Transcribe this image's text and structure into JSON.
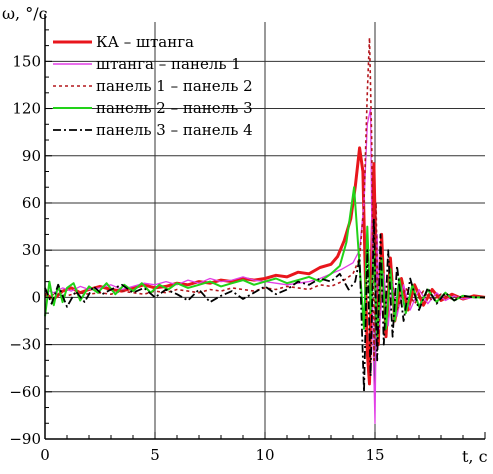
{
  "chart_data": {
    "type": "line",
    "ylabel": "ω, °/c",
    "xlabel": "t, c",
    "xlim": [
      0,
      20
    ],
    "ylim": [
      -90,
      175
    ],
    "xticks": [
      0,
      5,
      10,
      15
    ],
    "yticks": [
      -90,
      -60,
      -30,
      0,
      30,
      60,
      90,
      120,
      150
    ],
    "grid": true,
    "legend_position": "top-left",
    "series": [
      {
        "name": "КА – штанга",
        "color": "#e8161c",
        "dash": "solid",
        "width": 3,
        "x": [
          0,
          0.4,
          0.8,
          1.2,
          1.6,
          2.0,
          2.5,
          3.0,
          3.5,
          4.0,
          4.5,
          5.0,
          5.5,
          6.0,
          6.5,
          7.0,
          7.5,
          8.0,
          8.5,
          9.0,
          9.5,
          10.0,
          10.5,
          11.0,
          11.5,
          12.0,
          12.5,
          13.0,
          13.3,
          13.6,
          13.9,
          14.1,
          14.3,
          14.45,
          14.55,
          14.65,
          14.75,
          14.85,
          14.95,
          15.05,
          15.15,
          15.3,
          15.5,
          15.7,
          15.9,
          16.2,
          16.5,
          16.8,
          17.2,
          17.6,
          18.0,
          18.5,
          19.0,
          19.5,
          20.0
        ],
        "y": [
          2,
          -1,
          4,
          6,
          3,
          5,
          7,
          5,
          4,
          6,
          8,
          6,
          7,
          9,
          8,
          10,
          9,
          11,
          10,
          12,
          11,
          12,
          14,
          13,
          16,
          15,
          19,
          21,
          26,
          36,
          50,
          70,
          95,
          80,
          20,
          -35,
          -55,
          30,
          85,
          20,
          -30,
          40,
          -25,
          25,
          -15,
          12,
          -8,
          8,
          -5,
          5,
          -2,
          2,
          -1,
          1,
          0
        ]
      },
      {
        "name": "штанга – панель 1",
        "color": "#e23fe6",
        "dash": "solid",
        "width": 1.3,
        "x": [
          0,
          0.4,
          0.8,
          1.2,
          1.6,
          2.0,
          2.5,
          3.0,
          3.5,
          4.0,
          4.5,
          5.0,
          5.5,
          6.0,
          6.5,
          7.0,
          7.5,
          8.0,
          8.5,
          9.0,
          9.5,
          10.0,
          10.5,
          11.0,
          11.5,
          12.0,
          12.5,
          13.0,
          13.5,
          14.0,
          14.3,
          14.5,
          14.65,
          14.8,
          14.9,
          15.0,
          15.1,
          15.2,
          15.4,
          15.6,
          15.8,
          16.0,
          16.3,
          16.6,
          17.0,
          17.4,
          17.8,
          18.2,
          18.6,
          19.0,
          19.5,
          20.0
        ],
        "y": [
          5,
          3,
          6,
          4,
          7,
          5,
          6,
          8,
          5,
          7,
          9,
          8,
          10,
          8,
          11,
          9,
          12,
          10,
          11,
          13,
          11,
          10,
          9,
          8,
          9,
          10,
          12,
          15,
          18,
          22,
          30,
          60,
          110,
          120,
          -20,
          -80,
          40,
          -20,
          15,
          -18,
          10,
          -12,
          8,
          -8,
          5,
          -4,
          3,
          -2,
          1,
          -1,
          0,
          0
        ]
      },
      {
        "name": "панель 1 – панель 2",
        "color": "#b3161c",
        "dash": "3,3",
        "width": 1.6,
        "x": [
          0,
          0.5,
          1.0,
          1.5,
          2.0,
          2.5,
          3.0,
          3.5,
          4.0,
          4.5,
          5.0,
          5.5,
          6.0,
          6.5,
          7.0,
          7.5,
          8.0,
          8.5,
          9.0,
          9.5,
          10.0,
          10.5,
          11.0,
          11.5,
          12.0,
          12.5,
          13.0,
          13.5,
          14.0,
          14.3,
          14.5,
          14.65,
          14.75,
          14.85,
          14.95,
          15.05,
          15.15,
          15.3,
          15.5,
          15.7,
          16.0,
          16.4,
          16.8,
          17.2,
          17.6,
          18.0,
          18.5,
          19.0,
          19.5,
          20.0
        ],
        "y": [
          1,
          2,
          1,
          3,
          2,
          3,
          2,
          4,
          3,
          2,
          4,
          3,
          5,
          4,
          3,
          5,
          4,
          6,
          5,
          4,
          6,
          5,
          7,
          6,
          5,
          8,
          7,
          10,
          15,
          25,
          60,
          130,
          165,
          100,
          -40,
          60,
          -30,
          20,
          -10,
          15,
          -8,
          6,
          -4,
          4,
          -2,
          2,
          -1,
          1,
          0,
          0
        ]
      },
      {
        "name": "панель 2 – панель 3",
        "color": "#22d219",
        "dash": "solid",
        "width": 2,
        "x": [
          0,
          0.2,
          0.4,
          0.6,
          0.8,
          1.0,
          1.3,
          1.6,
          2.0,
          2.4,
          2.8,
          3.2,
          3.6,
          4.0,
          4.4,
          4.8,
          5.2,
          5.6,
          6.0,
          6.5,
          7.0,
          7.5,
          8.0,
          8.5,
          9.0,
          9.5,
          10.0,
          10.5,
          11.0,
          11.5,
          12.0,
          12.5,
          13.0,
          13.4,
          13.7,
          13.9,
          14.05,
          14.2,
          14.35,
          14.5,
          14.65,
          14.8,
          14.95,
          15.1,
          15.3,
          15.5,
          15.7,
          15.9,
          16.1,
          16.4,
          16.7,
          17.0,
          17.4,
          17.8,
          18.2,
          18.6,
          19.0,
          19.5,
          20.0
        ],
        "y": [
          -12,
          10,
          -5,
          8,
          -3,
          6,
          9,
          -2,
          7,
          3,
          9,
          2,
          8,
          4,
          9,
          3,
          8,
          5,
          9,
          6,
          8,
          10,
          7,
          9,
          11,
          8,
          10,
          12,
          9,
          11,
          13,
          10,
          15,
          20,
          35,
          55,
          70,
          40,
          10,
          -20,
          45,
          -10,
          30,
          -25,
          25,
          -20,
          18,
          -15,
          12,
          -10,
          8,
          -6,
          5,
          -3,
          3,
          -2,
          1,
          0,
          0
        ]
      },
      {
        "name": "панель 3 – панель 4",
        "color": "#000000",
        "dash": "8,3,2,3",
        "width": 1.8,
        "x": [
          0,
          0.3,
          0.6,
          1.0,
          1.4,
          1.8,
          2.2,
          2.6,
          3.0,
          3.5,
          4.0,
          4.5,
          5.0,
          5.5,
          6.0,
          6.5,
          7.0,
          7.5,
          8.0,
          8.5,
          9.0,
          9.5,
          10.0,
          10.5,
          11.0,
          11.5,
          12.0,
          12.5,
          13.0,
          13.4,
          13.8,
          14.1,
          14.3,
          14.5,
          14.65,
          14.8,
          14.95,
          15.1,
          15.25,
          15.4,
          15.6,
          15.8,
          16.0,
          16.3,
          16.6,
          17.0,
          17.4,
          17.8,
          18.2,
          18.6,
          19.0,
          19.5,
          20.0
        ],
        "y": [
          6,
          -4,
          8,
          -6,
          4,
          -3,
          7,
          2,
          5,
          8,
          3,
          6,
          0,
          5,
          2,
          -2,
          5,
          -3,
          1,
          4,
          -1,
          3,
          7,
          2,
          5,
          10,
          8,
          12,
          10,
          15,
          5,
          10,
          25,
          -60,
          30,
          -50,
          50,
          -40,
          40,
          -30,
          30,
          -25,
          20,
          -15,
          12,
          -8,
          6,
          -4,
          3,
          -2,
          1,
          0,
          0
        ]
      }
    ]
  }
}
